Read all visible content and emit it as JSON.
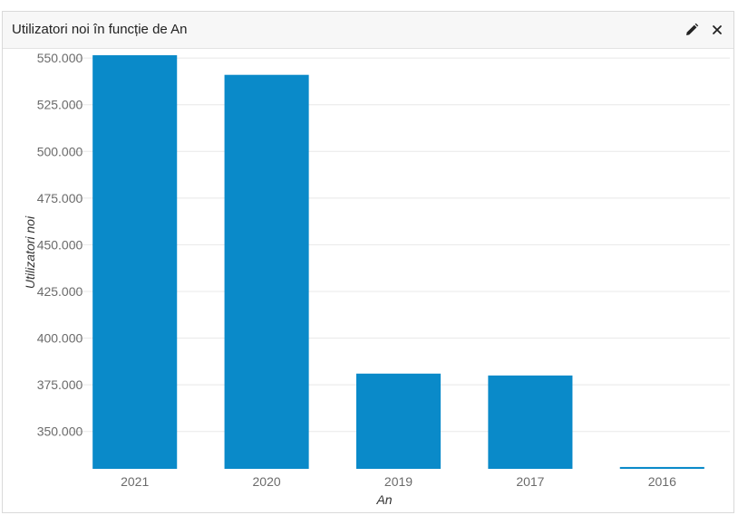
{
  "widget": {
    "title": "Utilizatori noi în funcție de An",
    "edit_icon": "pencil-icon",
    "close_icon": "close-icon"
  },
  "chart_data": {
    "type": "bar",
    "categories": [
      "2021",
      "2020",
      "2019",
      "2017",
      "2016"
    ],
    "values": [
      551500,
      541000,
      381000,
      380000,
      331000
    ],
    "xlabel": "An",
    "ylabel": "Utilizatori noi",
    "ylim": [
      330000,
      552000
    ],
    "yticks": [
      350000,
      375000,
      400000,
      425000,
      450000,
      475000,
      500000,
      525000,
      550000
    ],
    "ytick_labels": [
      "350.000",
      "375.000",
      "400.000",
      "425.000",
      "450.000",
      "475.000",
      "500.000",
      "525.000",
      "550.000"
    ],
    "grid": true,
    "legend": "none",
    "bar_color": "#0a8ac9"
  }
}
